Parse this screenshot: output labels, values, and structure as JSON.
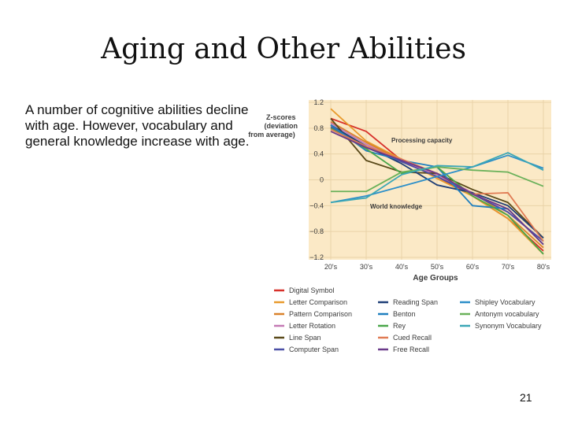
{
  "slide": {
    "title": "Aging and Other Abilities",
    "body": "A number of cognitive abilities decline with age. However, vocabulary and general knowledge increase with age.",
    "page_number": "21"
  },
  "chart_data": {
    "type": "line",
    "ylabel": "Z-scores (deviation from average)",
    "xlabel": "Age Groups",
    "categories": [
      "20's",
      "30's",
      "40's",
      "50's",
      "60's",
      "70's",
      "80's"
    ],
    "y_ticks": [
      "1.2",
      "0.8",
      "0.4",
      "0",
      "−0.4",
      "−0.8",
      "−1.2"
    ],
    "ylim": [
      -1.2,
      1.2
    ],
    "annotations": [
      "Processing capacity",
      "World knowledge"
    ],
    "series": [
      {
        "name": "Digital Symbol",
        "color": "#d7302a",
        "values": [
          0.95,
          0.75,
          0.3,
          0.05,
          -0.25,
          -0.6,
          -1.1
        ]
      },
      {
        "name": "Letter Comparison",
        "color": "#e89a2c",
        "values": [
          1.1,
          0.6,
          0.32,
          0.02,
          -0.25,
          -0.6,
          -1.15
        ]
      },
      {
        "name": "Pattern Comparison",
        "color": "#d9822b",
        "values": [
          0.9,
          0.58,
          0.3,
          0.05,
          -0.2,
          -0.55,
          -1.05
        ]
      },
      {
        "name": "Letter Rotation",
        "color": "#c47ab5",
        "values": [
          0.88,
          0.55,
          0.28,
          0.08,
          -0.2,
          -0.5,
          -0.95
        ]
      },
      {
        "name": "Line Span",
        "color": "#5a4a1a",
        "values": [
          0.95,
          0.3,
          0.12,
          0.1,
          -0.15,
          -0.35,
          -0.9
        ]
      },
      {
        "name": "Computer Span",
        "color": "#4b4fa6",
        "values": [
          0.82,
          0.5,
          0.28,
          0.05,
          -0.22,
          -0.5,
          -0.95
        ]
      },
      {
        "name": "Reading Span",
        "color": "#1f3f77",
        "values": [
          0.85,
          0.52,
          0.25,
          -0.08,
          -0.2,
          -0.4,
          -0.9
        ]
      },
      {
        "name": "Benton",
        "color": "#1f7fbf",
        "values": [
          0.85,
          0.45,
          0.3,
          0.2,
          -0.4,
          -0.45,
          -1.0
        ]
      },
      {
        "name": "Rey",
        "color": "#4aa64a",
        "values": [
          0.8,
          0.48,
          0.1,
          0.2,
          -0.25,
          -0.55,
          -1.15
        ]
      },
      {
        "name": "Cued Recall",
        "color": "#e07b54",
        "values": [
          0.78,
          0.52,
          0.32,
          0.1,
          -0.22,
          -0.2,
          -0.95
        ]
      },
      {
        "name": "Free Recall",
        "color": "#6a3a8a",
        "values": [
          0.75,
          0.5,
          0.3,
          0.1,
          -0.22,
          -0.45,
          -1.0
        ]
      },
      {
        "name": "Shipley Vocabulary",
        "color": "#2c8fc9",
        "values": [
          -0.35,
          -0.25,
          -0.1,
          0.05,
          0.2,
          0.38,
          0.18
        ]
      },
      {
        "name": "Antonym vocabulary",
        "color": "#6ab15a",
        "values": [
          -0.18,
          -0.18,
          0.12,
          0.2,
          0.15,
          0.12,
          -0.1
        ]
      },
      {
        "name": "Synonym Vocabulary",
        "color": "#3ba7b6",
        "values": [
          -0.35,
          -0.28,
          0.08,
          0.22,
          0.2,
          0.42,
          0.15
        ]
      }
    ]
  }
}
